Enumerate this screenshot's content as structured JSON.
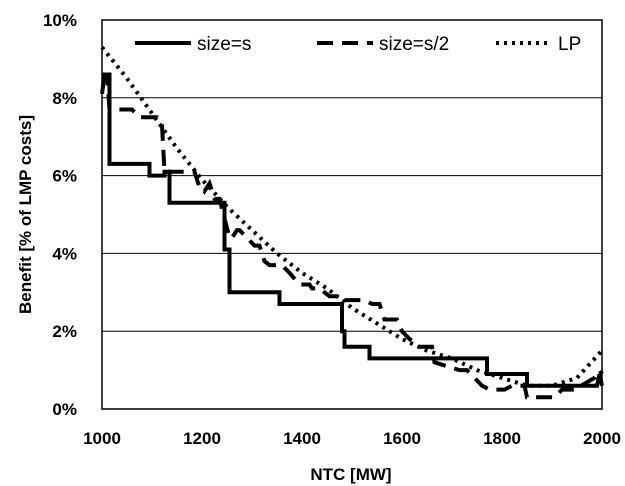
{
  "chart_data": {
    "type": "line",
    "title": "",
    "xlabel": "NTC [MW]",
    "ylabel": "Benefit [% of LMP costs]",
    "xlim": [
      1000,
      2000
    ],
    "ylim": [
      0,
      10
    ],
    "x_ticks": [
      1000,
      1200,
      1400,
      1600,
      1800,
      2000
    ],
    "x_tick_labels": [
      "1000",
      "1200",
      "1400",
      "1600",
      "1800",
      "2000"
    ],
    "y_ticks": [
      0,
      2,
      4,
      6,
      8,
      10
    ],
    "y_tick_labels": [
      "0%",
      "2%",
      "4%",
      "6%",
      "8%",
      "10%"
    ],
    "grid": "horizontal",
    "legend_position": "top",
    "series": [
      {
        "name": "size=s",
        "style": "solid",
        "color": "#000000",
        "x": [
          1000,
          1005,
          1015,
          1015,
          1095,
          1095,
          1125,
          1125,
          1135,
          1135,
          1155,
          1245,
          1245,
          1255,
          1255,
          1295,
          1345,
          1355,
          1355,
          1405,
          1480,
          1480,
          1485,
          1485,
          1510,
          1535,
          1535,
          1605,
          1650,
          1700,
          1770,
          1770,
          1780,
          1780,
          1850,
          1850,
          1950,
          1990,
          1995,
          2000
        ],
        "y": [
          8.1,
          8.6,
          8.6,
          6.3,
          6.3,
          6.0,
          6.0,
          6.1,
          6.1,
          5.3,
          5.3,
          5.3,
          4.1,
          4.1,
          3.0,
          3.0,
          3.0,
          3.0,
          2.7,
          2.7,
          2.7,
          2.0,
          2.0,
          1.6,
          1.6,
          1.6,
          1.3,
          1.3,
          1.3,
          1.3,
          1.3,
          0.9,
          0.9,
          0.9,
          0.9,
          0.6,
          0.6,
          0.6,
          0.9,
          0.6
        ]
      },
      {
        "name": "size=s/2",
        "style": "dashed",
        "color": "#000000",
        "x": [
          1000,
          1010,
          1015,
          1060,
          1075,
          1095,
          1110,
          1120,
          1125,
          1185,
          1195,
          1200,
          1205,
          1215,
          1225,
          1235,
          1245,
          1255,
          1260,
          1270,
          1275,
          1305,
          1315,
          1325,
          1335,
          1360,
          1375,
          1395,
          1415,
          1420,
          1435,
          1455,
          1470,
          1475,
          1495,
          1525,
          1540,
          1555,
          1565,
          1590,
          1600,
          1615,
          1635,
          1660,
          1665,
          1715,
          1730,
          1760,
          1775,
          1805,
          1820,
          1845,
          1850,
          1890,
          1905,
          1920,
          1945,
          1985,
          1995,
          2000
        ],
        "y": [
          8.6,
          8.6,
          7.7,
          7.7,
          7.5,
          7.5,
          7.5,
          7.3,
          6.1,
          6.1,
          5.7,
          5.7,
          5.6,
          5.8,
          5.4,
          5.4,
          4.9,
          4.4,
          4.4,
          4.6,
          4.6,
          4.2,
          4.2,
          3.8,
          3.7,
          3.7,
          3.5,
          3.2,
          3.2,
          3.1,
          3.1,
          2.9,
          2.9,
          2.8,
          2.8,
          2.8,
          2.7,
          2.7,
          2.3,
          2.3,
          2.0,
          1.8,
          1.6,
          1.6,
          1.2,
          1.0,
          1.0,
          0.6,
          0.5,
          0.5,
          0.6,
          0.6,
          0.3,
          0.3,
          0.3,
          0.5,
          0.5,
          0.8,
          1.0,
          0.9
        ]
      },
      {
        "name": "LP",
        "style": "dotted",
        "color": "#000000",
        "x": [
          1000,
          1050,
          1100,
          1150,
          1200,
          1250,
          1300,
          1350,
          1400,
          1450,
          1500,
          1550,
          1600,
          1650,
          1700,
          1750,
          1800,
          1850,
          1900,
          1950,
          2000
        ],
        "y": [
          9.3,
          8.5,
          7.6,
          6.7,
          5.9,
          5.2,
          4.6,
          4.0,
          3.5,
          3.1,
          2.6,
          2.2,
          1.8,
          1.5,
          1.3,
          1.0,
          0.8,
          0.6,
          0.6,
          0.8,
          1.5
        ]
      }
    ]
  }
}
